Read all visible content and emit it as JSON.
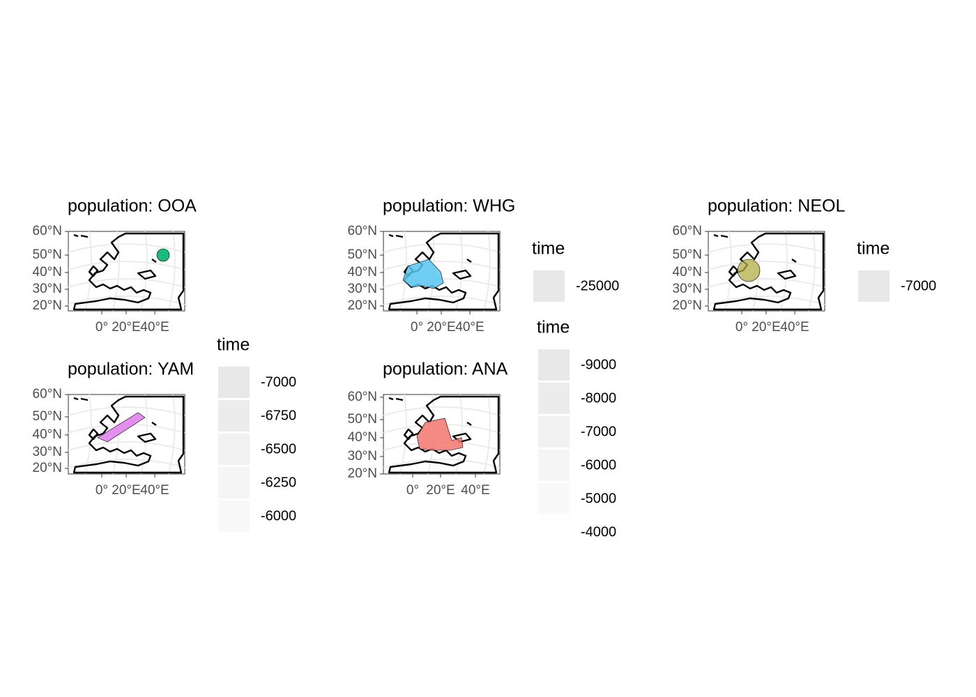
{
  "panels": [
    {
      "title": "population: OOA",
      "color": "#19bb7c",
      "yticks": [
        "60°N",
        "50°N",
        "40°N",
        "30°N",
        "20°N"
      ],
      "xticks": [
        "0°",
        "20°E",
        "40°E"
      ]
    },
    {
      "title": "population: WHG",
      "color": "#56c6f0",
      "yticks": [
        "60°N",
        "50°N",
        "40°N",
        "30°N",
        "20°N"
      ],
      "xticks": [
        "0°",
        "20°E",
        "40°E"
      ],
      "legend": {
        "title": "time",
        "values": [
          -25000
        ]
      }
    },
    {
      "title": "population: NEOL",
      "color": "#b3ad45",
      "yticks": [
        "60°N",
        "50°N",
        "40°N",
        "30°N",
        "20°N"
      ],
      "xticks": [
        "0°",
        "20°E",
        "40°E"
      ],
      "legend": {
        "title": "time",
        "values": [
          -7000
        ]
      }
    },
    {
      "title": "population: YAM",
      "color": "#e07af0",
      "yticks": [
        "60°N",
        "50°N",
        "40°N",
        "30°N",
        "20°N"
      ],
      "xticks": [
        "0°",
        "20°E",
        "40°E"
      ],
      "legend": {
        "title": "time",
        "values": [
          -7000,
          -6750,
          -6500,
          -6250,
          -6000
        ]
      }
    },
    {
      "title": "population: ANA",
      "color": "#f2766d",
      "yticks": [
        "60°N",
        "50°N",
        "40°N",
        "30°N",
        "20°N"
      ],
      "xticks": [
        "0°",
        "20°E",
        "40°E"
      ],
      "legend": {
        "title": "time",
        "values": [
          -9000,
          -8000,
          -7000,
          -6000,
          -5000,
          -4000
        ]
      }
    }
  ]
}
